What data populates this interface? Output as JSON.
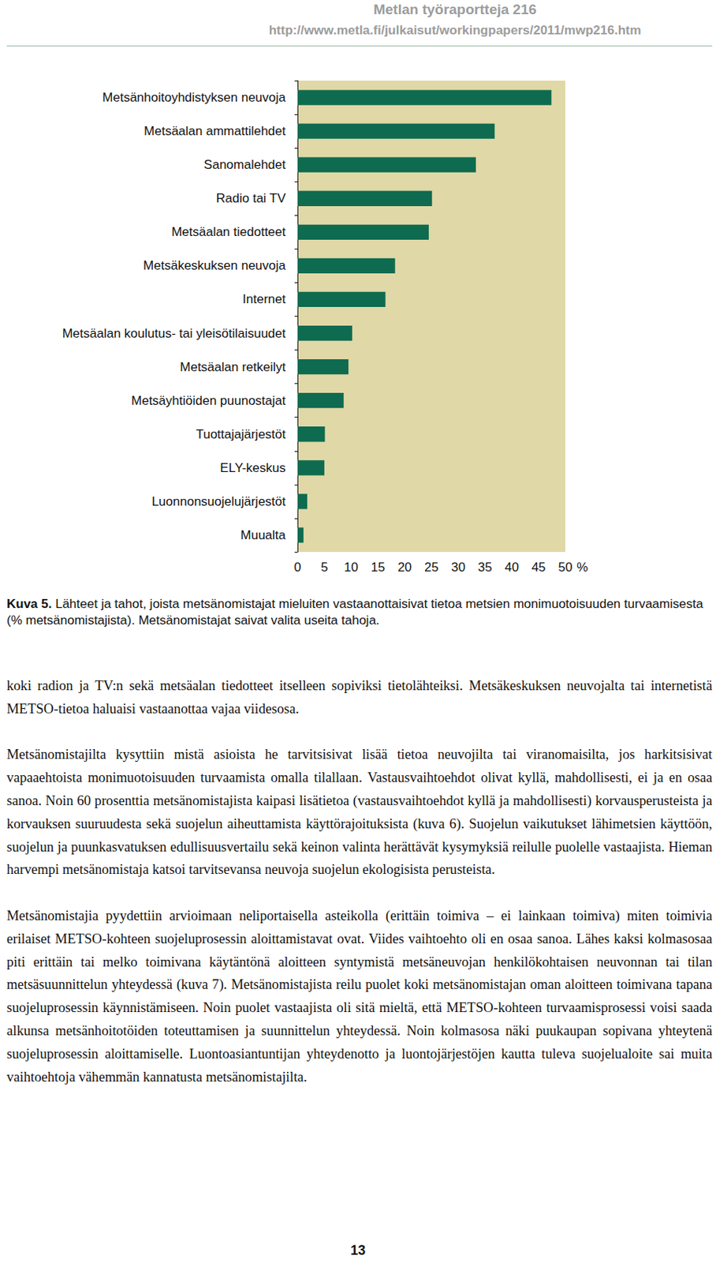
{
  "header": {
    "title": "Metlan työraportteja 216",
    "url": "http://www.metla.fi/julkaisut/workingpapers/2011/mwp216.htm"
  },
  "chart_data": {
    "type": "bar",
    "orientation": "horizontal",
    "categories": [
      "Metsänhoitoyhdistyksen neuvoja",
      "Metsäalan ammattilehdet",
      "Sanomalehdet",
      "Radio tai TV",
      "Metsäalan tiedotteet",
      "Metsäkeskuksen neuvoja",
      "Internet",
      "Metsäalan koulutus- tai yleisötilaisuudet",
      "Metsäalan retkeilyt",
      "Metsäyhtiöiden puunostajat",
      "Tuottajajärjestöt",
      "ELY-keskus",
      "Luonnonsuojelujärjestöt",
      "Muualta"
    ],
    "values": [
      47.4,
      36.8,
      33.3,
      25.1,
      24.5,
      18.2,
      16.4,
      10.2,
      9.5,
      8.6,
      5.1,
      5.0,
      1.8,
      1.1
    ],
    "color": "#0e6b4f",
    "xlim": [
      0,
      50
    ],
    "xticks": [
      0,
      5,
      10,
      15,
      20,
      25,
      30,
      35,
      40,
      45,
      50
    ],
    "x_label": "%",
    "grid": false
  },
  "caption": {
    "label": "Kuva 5.",
    "text": "Lähteet ja tahot, joista metsänomistajat mieluiten vastaanottaisivat tietoa metsien monimuotoisuuden turvaamisesta (% metsänomistajista). Metsänomistajat saivat valita useita tahoja."
  },
  "paragraphs": [
    "koki radion ja TV:n sekä metsäalan tiedotteet itselleen sopiviksi tietolähteiksi. Metsäkeskuksen neuvojalta tai internetistä METSO-tietoa haluaisi vastaanottaa vajaa viidesosa.",
    "Metsänomistajilta kysyttiin mistä asioista he tarvitsisivat lisää tietoa neuvojilta tai viranomaisilta, jos harkitsisivat vapaaehtoista monimuotoisuuden turvaamista omalla tilallaan. Vastausvaihtoehdot olivat kyllä, mahdollisesti, ei ja en osaa sanoa. Noin 60 prosenttia metsänomistajista kaipasi lisätietoa (vastausvaihtoehdot kyllä ja mahdollisesti) korvausperusteista ja korvauksen suuruudesta sekä suojelun aiheuttamista käyttörajoituksista (kuva 6). Suojelun vaikutukset lähimetsien käyttöön, suojelun ja puunkasvatuksen edullisuusvertailu sekä keinon valinta herättävät kysymyksiä reilulle puolelle vastaajista. Hieman harvempi metsänomistaja katsoi tarvitsevansa neuvoja suojelun ekologisista perusteista.",
    "Metsänomistajia pyydettiin arvioimaan neliportaisella asteikolla (erittäin toimiva – ei lainkaan toimiva) miten toimivia erilaiset METSO-kohteen suojeluprosessin aloittamistavat ovat. Viides vaihtoehto oli en osaa sanoa. Lähes kaksi kolmasosaa piti erittäin tai melko toimivana käytäntönä aloitteen syntymistä metsäneuvojan henkilökohtaisen neuvonnan tai tilan metsäsuunnittelun yhteydessä (kuva 7). Metsänomistajista reilu puolet koki metsänomistajan oman aloitteen toimivana tapana suojeluprosessin käynnistämiseen. Noin puolet vastaajista oli sitä mieltä, että METSO-kohteen turvaamisprosessi voisi saada alkunsa metsänhoitotöiden toteuttamisen ja suunnittelun yhteydessä. Noin kolmasosa näki puukaupan sopivana yhteytenä suojeluprosessin aloittamiselle. Luontoasiantuntijan yhteydenotto ja luontojärjestöjen kautta tuleva suojelualoite sai muita vaihtoehtoja vähemmän kannatusta metsänomistajilta."
  ],
  "page_number": "13"
}
